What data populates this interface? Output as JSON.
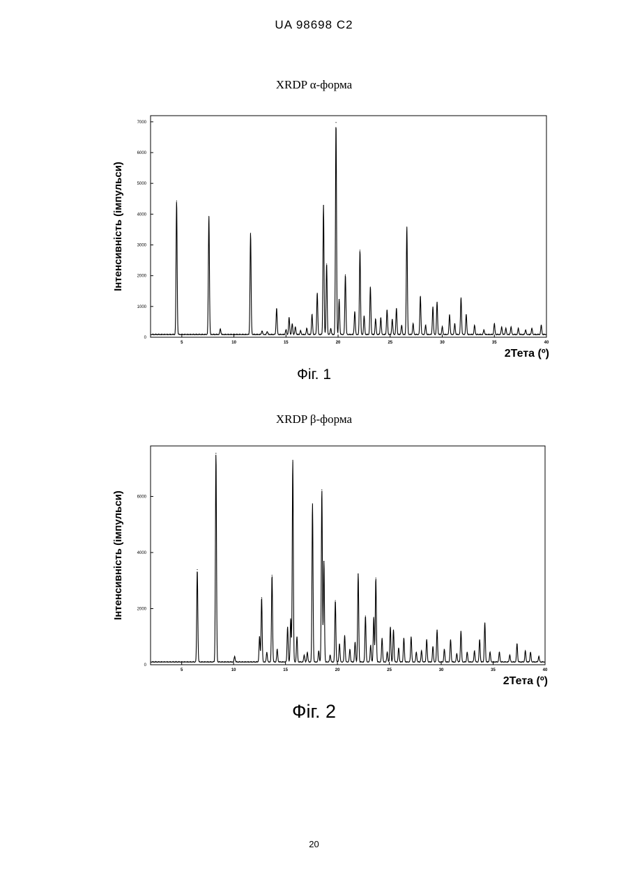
{
  "header": "UA  98698  C2",
  "page_number": "20",
  "chart_data": [
    {
      "type": "line",
      "title": "XRDP α-форма",
      "caption": "Фіг. 1",
      "ylabel": "Інтенсивність (імпульси)",
      "xlabel": "2Тета (º)",
      "xlim": [
        2,
        40
      ],
      "ylim": [
        0,
        7200
      ],
      "xticks": [
        5,
        10,
        15,
        20,
        25,
        30,
        35,
        40
      ],
      "xtick_labels": [
        "5",
        "10",
        "15",
        "20",
        "25",
        "30",
        "35",
        "40"
      ],
      "yticks": [
        0,
        1000,
        2000,
        3000,
        4000,
        5000,
        6000,
        7000
      ],
      "ytick_labels": [
        "0",
        "1000",
        "2000",
        "3000",
        "4000",
        "5000",
        "6000",
        "7000"
      ],
      "grid": false,
      "baseline": 80,
      "peaks": [
        [
          4.5,
          4350
        ],
        [
          7.6,
          3850
        ],
        [
          8.7,
          180
        ],
        [
          11.6,
          3300
        ],
        [
          12.7,
          120
        ],
        [
          13.2,
          100
        ],
        [
          14.1,
          850
        ],
        [
          15.0,
          150
        ],
        [
          15.3,
          550
        ],
        [
          15.6,
          350
        ],
        [
          15.9,
          250
        ],
        [
          16.4,
          120
        ],
        [
          17.0,
          200
        ],
        [
          17.5,
          650
        ],
        [
          18.0,
          1350
        ],
        [
          18.6,
          4200
        ],
        [
          18.9,
          2300
        ],
        [
          19.3,
          200
        ],
        [
          19.8,
          6900
        ],
        [
          20.1,
          1150
        ],
        [
          20.7,
          1950
        ],
        [
          21.6,
          750
        ],
        [
          22.1,
          2750
        ],
        [
          22.5,
          600
        ],
        [
          23.1,
          1550
        ],
        [
          23.6,
          500
        ],
        [
          24.1,
          550
        ],
        [
          24.7,
          800
        ],
        [
          25.2,
          500
        ],
        [
          25.6,
          850
        ],
        [
          26.1,
          300
        ],
        [
          26.6,
          3500
        ],
        [
          27.2,
          350
        ],
        [
          27.9,
          1250
        ],
        [
          28.4,
          300
        ],
        [
          29.1,
          900
        ],
        [
          29.5,
          1050
        ],
        [
          30.0,
          250
        ],
        [
          30.7,
          650
        ],
        [
          31.2,
          350
        ],
        [
          31.8,
          1200
        ],
        [
          32.3,
          650
        ],
        [
          33.1,
          300
        ],
        [
          34.0,
          150
        ],
        [
          35.0,
          350
        ],
        [
          35.7,
          250
        ],
        [
          36.1,
          200
        ],
        [
          36.6,
          250
        ],
        [
          37.3,
          200
        ],
        [
          38.0,
          150
        ],
        [
          38.6,
          200
        ],
        [
          39.5,
          300
        ]
      ]
    },
    {
      "type": "line",
      "title": "XRDP β-форма",
      "caption": "Фіг. 2",
      "ylabel": "Інтенсивність (імпульси)",
      "xlabel": "2Тета (º)",
      "xlim": [
        2,
        40
      ],
      "ylim": [
        0,
        7800
      ],
      "xticks": [
        5,
        10,
        15,
        20,
        25,
        30,
        35,
        40
      ],
      "xtick_labels": [
        "5",
        "10",
        "15",
        "20",
        "25",
        "30",
        "35",
        "40"
      ],
      "yticks": [
        0,
        2000,
        4000,
        6000
      ],
      "ytick_labels": [
        "0",
        "2000",
        "4000",
        "6000"
      ],
      "grid": false,
      "baseline": 90,
      "peaks": [
        [
          6.5,
          3300
        ],
        [
          8.3,
          7450
        ],
        [
          10.1,
          200
        ],
        [
          12.5,
          900
        ],
        [
          12.7,
          2300
        ],
        [
          13.2,
          350
        ],
        [
          13.7,
          3100
        ],
        [
          14.2,
          450
        ],
        [
          15.2,
          1250
        ],
        [
          15.5,
          1550
        ],
        [
          15.7,
          7200
        ],
        [
          16.1,
          900
        ],
        [
          16.8,
          250
        ],
        [
          17.1,
          350
        ],
        [
          17.6,
          5650
        ],
        [
          18.2,
          400
        ],
        [
          18.5,
          6150
        ],
        [
          18.7,
          3600
        ],
        [
          19.3,
          250
        ],
        [
          19.8,
          2200
        ],
        [
          20.2,
          650
        ],
        [
          20.7,
          950
        ],
        [
          21.2,
          450
        ],
        [
          21.7,
          700
        ],
        [
          22.0,
          3150
        ],
        [
          22.7,
          1650
        ],
        [
          23.2,
          600
        ],
        [
          23.5,
          1600
        ],
        [
          23.7,
          3000
        ],
        [
          24.3,
          850
        ],
        [
          24.8,
          350
        ],
        [
          25.1,
          1250
        ],
        [
          25.4,
          1150
        ],
        [
          25.9,
          500
        ],
        [
          26.4,
          850
        ],
        [
          27.1,
          900
        ],
        [
          27.6,
          350
        ],
        [
          28.1,
          400
        ],
        [
          28.6,
          800
        ],
        [
          29.2,
          550
        ],
        [
          29.6,
          1150
        ],
        [
          30.3,
          450
        ],
        [
          30.9,
          800
        ],
        [
          31.5,
          300
        ],
        [
          31.9,
          1100
        ],
        [
          32.5,
          350
        ],
        [
          33.2,
          400
        ],
        [
          33.7,
          800
        ],
        [
          34.2,
          1400
        ],
        [
          34.7,
          350
        ],
        [
          35.6,
          350
        ],
        [
          36.6,
          250
        ],
        [
          37.3,
          650
        ],
        [
          38.1,
          400
        ],
        [
          38.6,
          350
        ],
        [
          39.4,
          200
        ]
      ]
    }
  ]
}
